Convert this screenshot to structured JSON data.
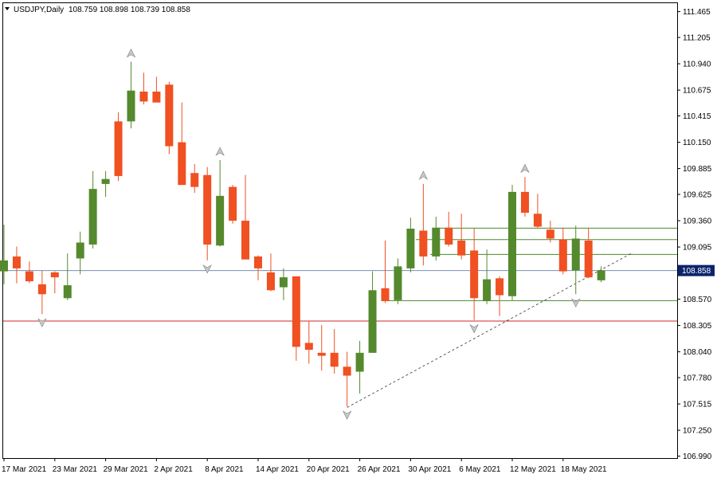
{
  "header": {
    "symbol": "USDJPY,Daily",
    "ohlc": "108.759 108.898 108.739 108.858"
  },
  "colors": {
    "bull": "#55892d",
    "bear": "#f05022",
    "support_line": "#cc2a2a",
    "price_line": "#7a8fb0",
    "trend_lines": "#4a8a2a",
    "price_tag_bg": "#0a246a",
    "arrow": "#a0a0a0"
  },
  "chart_data": {
    "type": "candlestick",
    "ylim": [
      106.97,
      111.55
    ],
    "y_ticks": [
      "111.465",
      "111.205",
      "110.940",
      "110.675",
      "110.415",
      "110.150",
      "109.885",
      "109.625",
      "109.360",
      "109.095",
      "108.835",
      "108.570",
      "108.305",
      "108.040",
      "107.780",
      "107.515",
      "107.250",
      "106.990"
    ],
    "x_ticks": [
      {
        "label": "17 Mar 2021",
        "index": 0
      },
      {
        "label": "23 Mar 2021",
        "index": 4
      },
      {
        "label": "29 Mar 2021",
        "index": 8
      },
      {
        "label": "2 Apr 2021",
        "index": 12
      },
      {
        "label": "8 Apr 2021",
        "index": 16
      },
      {
        "label": "14 Apr 2021",
        "index": 20
      },
      {
        "label": "20 Apr 2021",
        "index": 24
      },
      {
        "label": "26 Apr 2021",
        "index": 28
      },
      {
        "label": "30 Apr 2021",
        "index": 32
      },
      {
        "label": "6 May 2021",
        "index": 36
      },
      {
        "label": "12 May 2021",
        "index": 40
      },
      {
        "label": "18 May 2021",
        "index": 44
      }
    ],
    "candles": [
      {
        "o": 108.85,
        "h": 109.32,
        "l": 108.72,
        "c": 108.96
      },
      {
        "o": 109.0,
        "h": 109.1,
        "l": 108.73,
        "c": 108.88
      },
      {
        "o": 108.85,
        "h": 108.95,
        "l": 108.73,
        "c": 108.75
      },
      {
        "o": 108.72,
        "h": 108.86,
        "l": 108.42,
        "c": 108.62
      },
      {
        "o": 108.84,
        "h": 108.85,
        "l": 108.63,
        "c": 108.79
      },
      {
        "o": 108.58,
        "h": 109.03,
        "l": 108.56,
        "c": 108.71
      },
      {
        "o": 108.98,
        "h": 109.25,
        "l": 108.82,
        "c": 109.14
      },
      {
        "o": 109.12,
        "h": 109.86,
        "l": 109.08,
        "c": 109.68
      },
      {
        "o": 109.73,
        "h": 109.86,
        "l": 109.6,
        "c": 109.78
      },
      {
        "o": 110.36,
        "h": 110.45,
        "l": 109.76,
        "c": 109.81
      },
      {
        "o": 110.36,
        "h": 110.96,
        "l": 110.29,
        "c": 110.67
      },
      {
        "o": 110.66,
        "h": 110.85,
        "l": 110.53,
        "c": 110.56
      },
      {
        "o": 110.66,
        "h": 110.81,
        "l": 110.57,
        "c": 110.55
      },
      {
        "o": 110.73,
        "h": 110.76,
        "l": 110.03,
        "c": 110.11
      },
      {
        "o": 110.15,
        "h": 110.55,
        "l": 109.72,
        "c": 109.72
      },
      {
        "o": 109.84,
        "h": 109.93,
        "l": 109.64,
        "c": 109.7
      },
      {
        "o": 109.82,
        "h": 109.9,
        "l": 108.96,
        "c": 109.12
      },
      {
        "o": 109.11,
        "h": 109.97,
        "l": 109.1,
        "c": 109.61
      },
      {
        "o": 109.7,
        "h": 109.72,
        "l": 109.33,
        "c": 109.36
      },
      {
        "o": 109.36,
        "h": 109.82,
        "l": 108.97,
        "c": 108.97
      },
      {
        "o": 109.0,
        "h": 109.01,
        "l": 108.76,
        "c": 108.88
      },
      {
        "o": 108.84,
        "h": 109.03,
        "l": 108.65,
        "c": 108.66
      },
      {
        "o": 108.69,
        "h": 108.88,
        "l": 108.56,
        "c": 108.79
      },
      {
        "o": 108.8,
        "h": 108.8,
        "l": 107.95,
        "c": 108.09
      },
      {
        "o": 108.13,
        "h": 108.35,
        "l": 107.92,
        "c": 108.06
      },
      {
        "o": 108.03,
        "h": 108.31,
        "l": 107.85,
        "c": 108.0
      },
      {
        "o": 108.03,
        "h": 108.27,
        "l": 107.82,
        "c": 107.89
      },
      {
        "o": 107.89,
        "h": 108.04,
        "l": 107.49,
        "c": 107.8
      },
      {
        "o": 107.84,
        "h": 108.15,
        "l": 107.62,
        "c": 108.03
      },
      {
        "o": 108.03,
        "h": 108.85,
        "l": 108.03,
        "c": 108.66
      },
      {
        "o": 108.68,
        "h": 109.16,
        "l": 108.53,
        "c": 108.55
      },
      {
        "o": 108.56,
        "h": 108.98,
        "l": 108.52,
        "c": 108.9
      },
      {
        "o": 108.88,
        "h": 109.39,
        "l": 108.84,
        "c": 109.28
      },
      {
        "o": 109.26,
        "h": 109.73,
        "l": 108.91,
        "c": 109.0
      },
      {
        "o": 109.0,
        "h": 109.4,
        "l": 108.96,
        "c": 109.29
      },
      {
        "o": 109.29,
        "h": 109.45,
        "l": 109.1,
        "c": 109.12
      },
      {
        "o": 109.16,
        "h": 109.43,
        "l": 108.97,
        "c": 109.01
      },
      {
        "o": 109.06,
        "h": 109.28,
        "l": 108.36,
        "c": 108.58
      },
      {
        "o": 108.55,
        "h": 109.07,
        "l": 108.52,
        "c": 108.77
      },
      {
        "o": 108.78,
        "h": 108.8,
        "l": 108.4,
        "c": 108.61
      },
      {
        "o": 108.6,
        "h": 109.72,
        "l": 108.56,
        "c": 109.65
      },
      {
        "o": 109.65,
        "h": 109.8,
        "l": 109.4,
        "c": 109.44
      },
      {
        "o": 109.43,
        "h": 109.63,
        "l": 109.28,
        "c": 109.3
      },
      {
        "o": 109.27,
        "h": 109.36,
        "l": 109.14,
        "c": 109.18
      },
      {
        "o": 109.17,
        "h": 109.29,
        "l": 108.82,
        "c": 108.85
      },
      {
        "o": 108.86,
        "h": 109.31,
        "l": 108.62,
        "c": 109.18
      },
      {
        "o": 109.16,
        "h": 109.29,
        "l": 108.78,
        "c": 108.79
      },
      {
        "o": 108.76,
        "h": 108.9,
        "l": 108.74,
        "c": 108.86
      }
    ],
    "current_price": 108.858,
    "current_price_label": "108.858",
    "horizontal_levels": [
      109.285,
      109.17,
      109.02,
      108.555
    ],
    "support_level": 108.35,
    "trendline": {
      "from": {
        "index": 27,
        "price": 107.48
      },
      "to": {
        "index": 49.5,
        "price": 109.04
      }
    },
    "fractal_up": [
      {
        "index": 10,
        "price": 111.04
      },
      {
        "index": 17,
        "price": 110.05
      },
      {
        "index": 33,
        "price": 109.81
      },
      {
        "index": 41,
        "price": 109.88
      }
    ],
    "fractal_down": [
      {
        "index": 3,
        "price": 108.34
      },
      {
        "index": 16,
        "price": 108.88
      },
      {
        "index": 27,
        "price": 107.41
      },
      {
        "index": 37,
        "price": 108.28
      },
      {
        "index": 45,
        "price": 108.54
      }
    ]
  }
}
